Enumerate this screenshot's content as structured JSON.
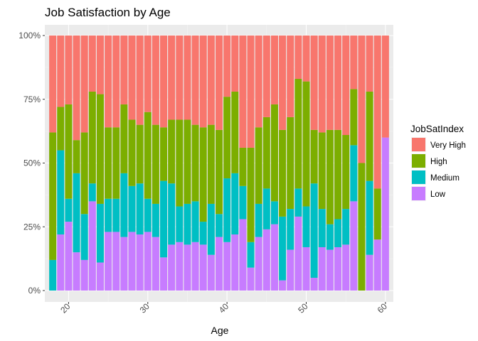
{
  "chart_data": {
    "type": "bar",
    "stacked": "percent",
    "title": "Job Satisfaction by Age",
    "xlabel": "Age",
    "ylabel": "",
    "x_ticks": [
      20,
      30,
      40,
      50,
      60
    ],
    "y_ticks": [
      "0%",
      "25%",
      "50%",
      "75%",
      "100%"
    ],
    "xlim": [
      17,
      61
    ],
    "ylim": [
      0,
      1
    ],
    "grid": true,
    "legend": {
      "title": "JobSatIndex",
      "position": "right",
      "entries": [
        "Very High",
        "High",
        "Medium",
        "Low"
      ]
    },
    "x": [
      18,
      19,
      20,
      21,
      22,
      23,
      24,
      25,
      26,
      27,
      28,
      29,
      30,
      31,
      32,
      33,
      34,
      35,
      36,
      37,
      38,
      39,
      40,
      41,
      42,
      43,
      44,
      45,
      46,
      47,
      48,
      49,
      50,
      51,
      52,
      53,
      54,
      55,
      56,
      57,
      58,
      59,
      60
    ],
    "series": [
      {
        "name": "Low",
        "color": "#C77CFF",
        "values": [
          0.0,
          0.22,
          0.27,
          0.15,
          0.12,
          0.35,
          0.11,
          0.23,
          0.23,
          0.21,
          0.23,
          0.22,
          0.23,
          0.21,
          0.13,
          0.18,
          0.19,
          0.18,
          0.19,
          0.18,
          0.14,
          0.21,
          0.19,
          0.22,
          0.28,
          0.09,
          0.21,
          0.24,
          0.26,
          0.04,
          0.16,
          0.29,
          0.17,
          0.05,
          0.17,
          0.16,
          0.17,
          0.18,
          0.35,
          0.0,
          0.14,
          0.2,
          0.6
        ]
      },
      {
        "name": "Medium",
        "color": "#00BFC4",
        "values": [
          0.12,
          0.33,
          0.09,
          0.31,
          0.18,
          0.07,
          0.23,
          0.13,
          0.13,
          0.25,
          0.18,
          0.2,
          0.13,
          0.13,
          0.3,
          0.24,
          0.14,
          0.16,
          0.16,
          0.09,
          0.2,
          0.09,
          0.25,
          0.24,
          0.13,
          0.1,
          0.13,
          0.16,
          0.09,
          0.25,
          0.16,
          0.11,
          0.16,
          0.37,
          0.15,
          0.1,
          0.11,
          0.14,
          0.22,
          0.0,
          0.29,
          0.0,
          0.0
        ]
      },
      {
        "name": "High",
        "color": "#7CAE00",
        "values": [
          0.5,
          0.17,
          0.37,
          0.13,
          0.32,
          0.36,
          0.43,
          0.28,
          0.28,
          0.27,
          0.26,
          0.23,
          0.34,
          0.31,
          0.21,
          0.25,
          0.34,
          0.33,
          0.3,
          0.37,
          0.31,
          0.33,
          0.32,
          0.32,
          0.15,
          0.37,
          0.3,
          0.28,
          0.38,
          0.34,
          0.36,
          0.43,
          0.49,
          0.21,
          0.3,
          0.37,
          0.35,
          0.29,
          0.22,
          0.5,
          0.35,
          0.2,
          0.0
        ]
      },
      {
        "name": "Very High",
        "color": "#F8766D",
        "values": [
          0.38,
          0.28,
          0.27,
          0.41,
          0.38,
          0.22,
          0.23,
          0.36,
          0.36,
          0.27,
          0.33,
          0.35,
          0.3,
          0.35,
          0.36,
          0.33,
          0.33,
          0.33,
          0.35,
          0.36,
          0.35,
          0.37,
          0.24,
          0.22,
          0.44,
          0.44,
          0.36,
          0.32,
          0.27,
          0.37,
          0.32,
          0.17,
          0.18,
          0.37,
          0.38,
          0.37,
          0.37,
          0.39,
          0.21,
          0.5,
          0.22,
          0.6,
          0.4
        ]
      }
    ]
  }
}
